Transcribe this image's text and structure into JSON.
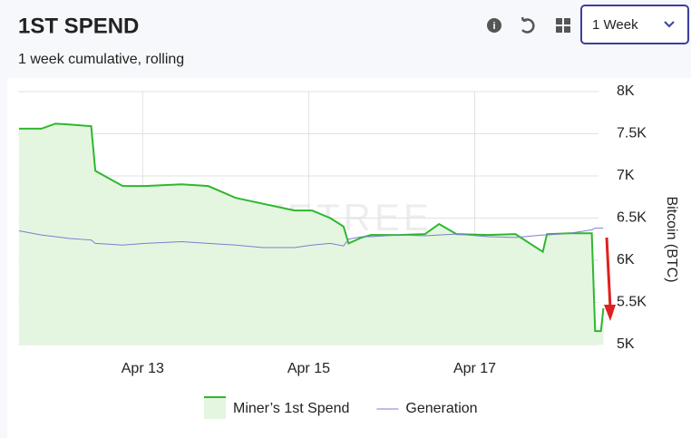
{
  "header": {
    "title": "1ST SPEND",
    "subtitle": "1 week cumulative, rolling",
    "period": "1 Week"
  },
  "chart_data": {
    "type": "line",
    "watermark": "BYTETREE",
    "y_label": "Bitcoin (BTC)",
    "x": [
      11.51,
      11.78,
      11.95,
      12.11,
      12.38,
      12.43,
      12.76,
      13.03,
      13.47,
      13.79,
      14.12,
      14.45,
      14.83,
      15.04,
      15.26,
      15.42,
      15.48,
      15.64,
      15.75,
      16.08,
      16.4,
      16.57,
      16.78,
      17.16,
      17.49,
      17.82,
      17.87,
      18.14,
      18.41,
      18.45,
      18.52,
      18.55
    ],
    "series": [
      {
        "name": "Miner’s 1st Spend",
        "color": "#2db82d",
        "fill": "#e4f6e0",
        "values": [
          7560,
          7560,
          7620,
          7610,
          7590,
          7060,
          6880,
          6880,
          6900,
          6880,
          6740,
          6670,
          6590,
          6590,
          6500,
          6400,
          6200,
          6270,
          6300,
          6300,
          6310,
          6430,
          6310,
          6300,
          6310,
          6100,
          6310,
          6320,
          6320,
          5160,
          5160,
          5430
        ]
      },
      {
        "name": "Generation",
        "color": "#7b7fcf",
        "values": [
          6350,
          6300,
          6280,
          6260,
          6240,
          6200,
          6180,
          6200,
          6220,
          6200,
          6180,
          6150,
          6150,
          6180,
          6200,
          6170,
          6250,
          6280,
          6280,
          6300,
          6290,
          6300,
          6310,
          6280,
          6270,
          6300,
          6300,
          6320,
          6360,
          6380,
          6380,
          6380
        ]
      }
    ],
    "xlim": [
      11.5,
      18.6
    ],
    "xticks": [
      {
        "value": 13,
        "label": "Apr 13"
      },
      {
        "value": 15,
        "label": "Apr 15"
      },
      {
        "value": 17,
        "label": "Apr 17"
      }
    ],
    "ylim": [
      5000,
      8000
    ],
    "yticks": [
      {
        "value": 5000,
        "label": "5K"
      },
      {
        "value": 5500,
        "label": "5.5K"
      },
      {
        "value": 6000,
        "label": "6K"
      },
      {
        "value": 6500,
        "label": "6.5K"
      },
      {
        "value": 7000,
        "label": "7K"
      },
      {
        "value": 7500,
        "label": "7.5K"
      },
      {
        "value": 8000,
        "label": "8K"
      }
    ],
    "grid": true,
    "legend": "bottom"
  }
}
